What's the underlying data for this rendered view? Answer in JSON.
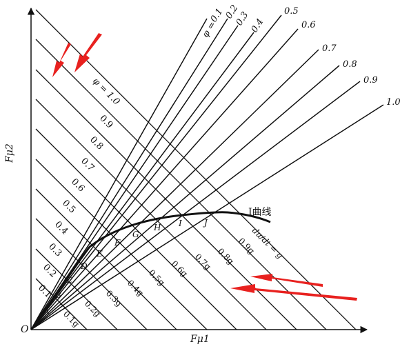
{
  "axes": {
    "x_label": "Fμ1",
    "y_label": "Fμ2",
    "origin_label": "O"
  },
  "phi_lines": {
    "prefix": "φ = ",
    "values": [
      "0.1",
      "0.2",
      "0.3",
      "0.4",
      "0.5",
      "0.6",
      "0.7",
      "0.8",
      "0.9",
      "1.0"
    ]
  },
  "isolines": {
    "first_label": "φ = 1.0",
    "upper_labels": [
      "0.9",
      "0.8",
      "0.7",
      "0.6",
      "0.5",
      "0.4",
      "0.3",
      "0.2",
      "0.1"
    ],
    "lower_labels": [
      "0.1g",
      "0.2g",
      "0.3g",
      "0.4g",
      "0.5g",
      "0.6g",
      "0.7g",
      "0.8g",
      "0.9g"
    ],
    "du_dt_label": "du/dt = g"
  },
  "i_curve": {
    "label": "I曲线",
    "points": [
      "A",
      "B",
      "C",
      "D",
      "E",
      "F",
      "G",
      "H",
      "I",
      "J"
    ]
  },
  "annotations": {
    "arrow_color": "#e8211f",
    "arrow_count": 4
  }
}
